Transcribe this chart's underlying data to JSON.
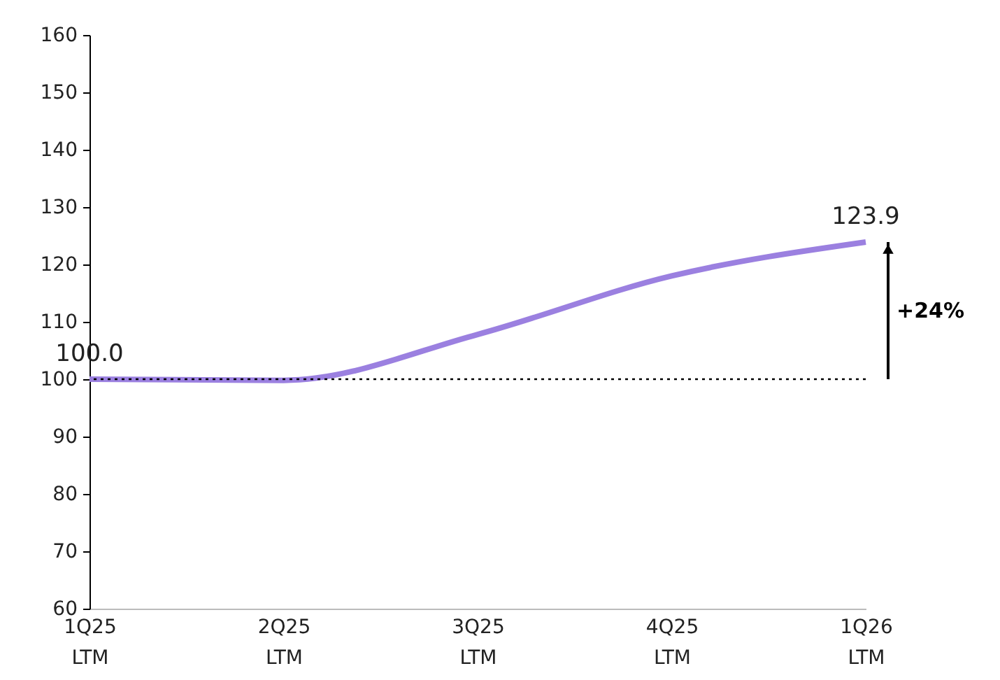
{
  "chart_data": {
    "type": "line",
    "categories": [
      "1Q25\nLTM",
      "2Q25\nLTM",
      "3Q25\nLTM",
      "4Q25\nLTM",
      "1Q26\nLTM"
    ],
    "series": [
      {
        "color": "#9b80e0",
        "values": [
          100.0,
          99.8,
          107.8,
          118.0,
          123.9
        ],
        "value_labels": [
          "100.0",
          null,
          null,
          null,
          "123.9"
        ]
      }
    ],
    "ylim": [
      60,
      160
    ],
    "yticks": [
      60,
      70,
      80,
      90,
      100,
      110,
      120,
      130,
      140,
      150,
      160
    ],
    "ref_lines": [
      {
        "axis": "y",
        "value": 100,
        "line_style": "dotted",
        "color": "#000000"
      }
    ],
    "annotations": [
      "+24%"
    ],
    "grid": false,
    "marker": "none",
    "line_style": "solid"
  }
}
